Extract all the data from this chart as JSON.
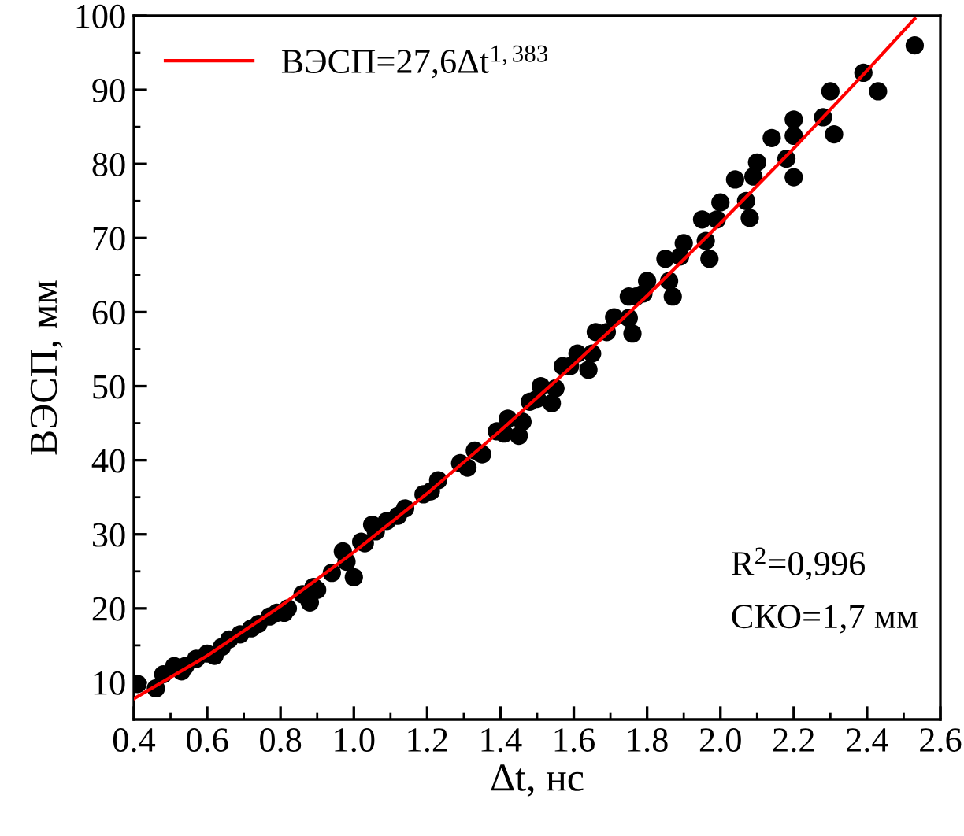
{
  "chart_data": {
    "type": "scatter",
    "xlabel": "Δt, нс",
    "ylabel": "ВЭСП, мм",
    "xlim": [
      0.4,
      2.6
    ],
    "ylim": [
      5,
      100
    ],
    "xticks": [
      0.4,
      0.6,
      0.8,
      {
        "value": 1.0,
        "label": "1.0"
      },
      1.2,
      1.4,
      1.6,
      1.8,
      {
        "value": 2.0,
        "label": "2.0"
      },
      2.2,
      2.4,
      2.6
    ],
    "yticks": [
      10,
      20,
      30,
      40,
      50,
      60,
      70,
      80,
      90,
      100
    ],
    "grid": false,
    "legend": "top left",
    "annotations": [
      "R$^{2}$=0,996",
      "СКО=1,7 мм"
    ],
    "series": [
      {
        "color": "#000000",
        "marker": "circle",
        "x": [
          0.41,
          0.46,
          0.48,
          0.51,
          0.53,
          0.54,
          0.57,
          0.6,
          0.62,
          0.64,
          0.66,
          0.69,
          0.72,
          0.74,
          0.77,
          0.79,
          0.82,
          0.81,
          0.86,
          0.88,
          0.89,
          0.9,
          0.94,
          0.97,
          0.98,
          1.0,
          1.02,
          1.03,
          1.05,
          1.06,
          1.09,
          1.12,
          1.14,
          1.19,
          1.21,
          1.23,
          1.29,
          1.31,
          1.33,
          1.35,
          1.39,
          1.41,
          1.42,
          1.45,
          1.46,
          1.48,
          1.5,
          1.51,
          1.54,
          1.55,
          1.57,
          1.59,
          1.61,
          1.64,
          1.65,
          1.66,
          1.69,
          1.71,
          1.75,
          1.76,
          1.75,
          1.77,
          1.79,
          1.8,
          1.85,
          1.86,
          1.87,
          1.89,
          1.9,
          1.95,
          1.96,
          1.97,
          1.99,
          2.0,
          2.04,
          2.07,
          2.08,
          2.09,
          2.1,
          2.14,
          2.18,
          2.2,
          2.2,
          2.2,
          2.28,
          2.3,
          2.31,
          2.39,
          2.43,
          2.53
        ],
        "values": [
          9.8,
          9.2,
          11.1,
          12.2,
          11.5,
          12.2,
          13.2,
          13.9,
          13.6,
          14.8,
          15.8,
          16.5,
          17.3,
          17.9,
          18.9,
          19.4,
          20.0,
          19.4,
          21.9,
          20.8,
          22.9,
          22.5,
          24.8,
          27.7,
          26.3,
          24.2,
          29.0,
          28.8,
          31.3,
          30.4,
          31.8,
          32.5,
          33.5,
          35.4,
          35.8,
          37.3,
          39.6,
          39.0,
          41.3,
          40.8,
          43.9,
          43.6,
          45.6,
          43.3,
          45.2,
          47.9,
          48.3,
          50.0,
          47.7,
          49.7,
          52.7,
          52.7,
          54.4,
          52.2,
          54.4,
          57.3,
          57.3,
          59.3,
          59.2,
          57.1,
          62.1,
          62.1,
          62.5,
          64.2,
          67.2,
          64.2,
          62.1,
          67.5,
          69.3,
          72.5,
          69.6,
          67.2,
          72.5,
          74.8,
          77.9,
          75.0,
          72.7,
          78.3,
          80.2,
          83.5,
          80.7,
          78.2,
          83.8,
          86.0,
          86.3,
          89.8,
          84.0,
          92.3,
          89.8,
          96.0
        ]
      },
      {
        "type": "line",
        "name": "ВЭСП=27,6Δt$^{1,383}$",
        "color": "#ff0000",
        "marker": "none",
        "line_style": "solid",
        "x": [
          0.4,
          0.6,
          0.8,
          1.0,
          1.2,
          1.4,
          1.6,
          1.8,
          2.0,
          2.2,
          2.4,
          2.53
        ],
        "values": [
          7.8,
          13.6,
          20.3,
          27.6,
          35.5,
          44.0,
          52.9,
          62.2,
          72.0,
          82.1,
          92.6,
          99.6
        ]
      }
    ]
  }
}
